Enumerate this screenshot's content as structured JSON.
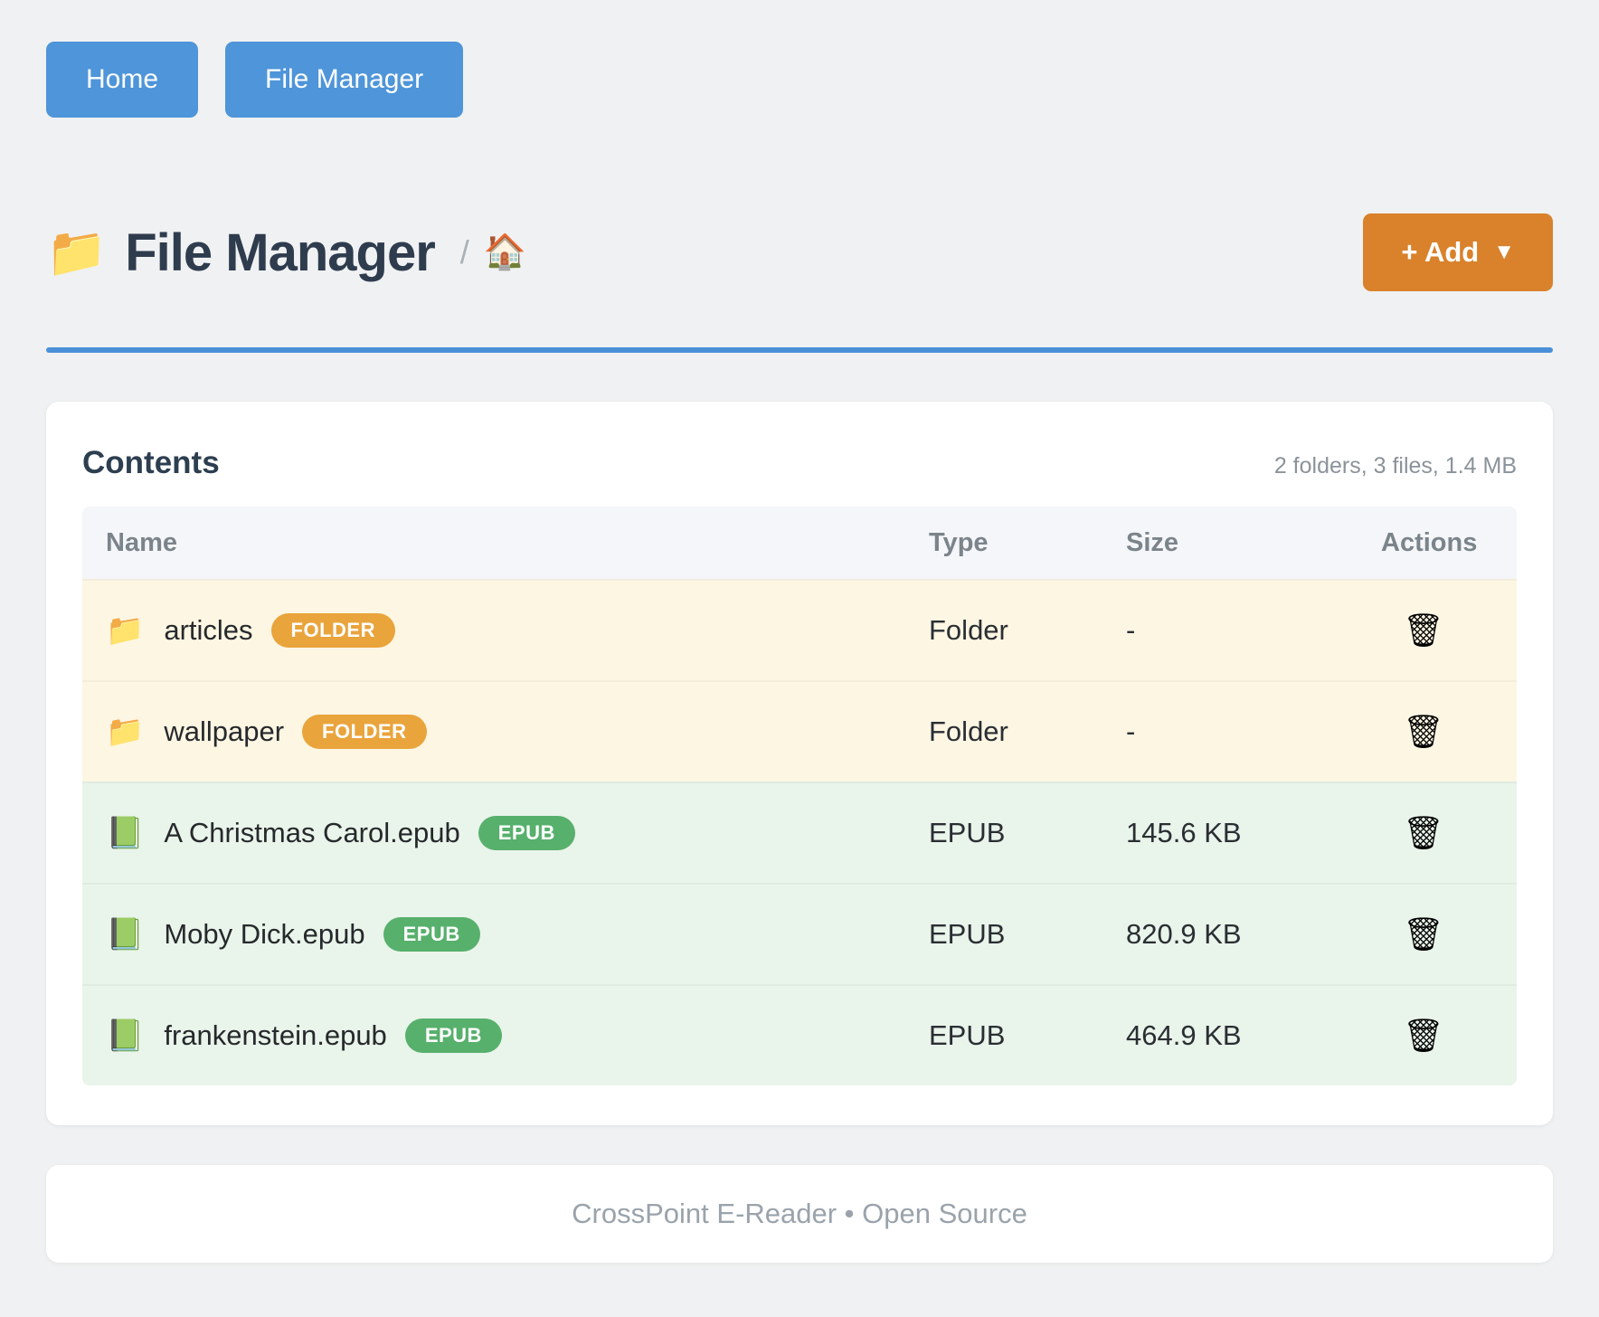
{
  "nav": {
    "home_label": "Home",
    "file_manager_label": "File Manager"
  },
  "header": {
    "folder_icon": "📁",
    "title": "File Manager",
    "breadcrumb_separator": "/",
    "home_icon": "🏠",
    "add_label": "+ Add",
    "add_caret": "▼"
  },
  "panel": {
    "title": "Contents",
    "summary": "2 folders, 3 files, 1.4 MB"
  },
  "icons": {
    "trash": "🗑"
  },
  "table": {
    "columns": [
      "Name",
      "Type",
      "Size",
      "Actions"
    ],
    "rows": [
      {
        "icon": "📁",
        "name": "articles",
        "badge": "FOLDER",
        "type": "Folder",
        "size": "-"
      },
      {
        "icon": "📁",
        "name": "wallpaper",
        "badge": "FOLDER",
        "type": "Folder",
        "size": "-"
      },
      {
        "icon": "📗",
        "name": "A Christmas Carol.epub",
        "badge": "EPUB",
        "type": "EPUB",
        "size": "145.6 KB"
      },
      {
        "icon": "📗",
        "name": "Moby Dick.epub",
        "badge": "EPUB",
        "type": "EPUB",
        "size": "820.9 KB"
      },
      {
        "icon": "📗",
        "name": "frankenstein.epub",
        "badge": "EPUB",
        "type": "EPUB",
        "size": "464.9 KB"
      }
    ]
  },
  "footer": {
    "text": "CrossPoint E-Reader • Open Source"
  },
  "colors": {
    "nav_button": "#4e95d9",
    "add_button": "#d9822b",
    "divider": "#4a90d9",
    "folder_badge": "#e9a43c",
    "epub_badge": "#57b06c",
    "folder_row_bg": "#fdf6e3",
    "epub_row_bg": "#e9f4ea",
    "page_bg": "#f0f1f2"
  }
}
